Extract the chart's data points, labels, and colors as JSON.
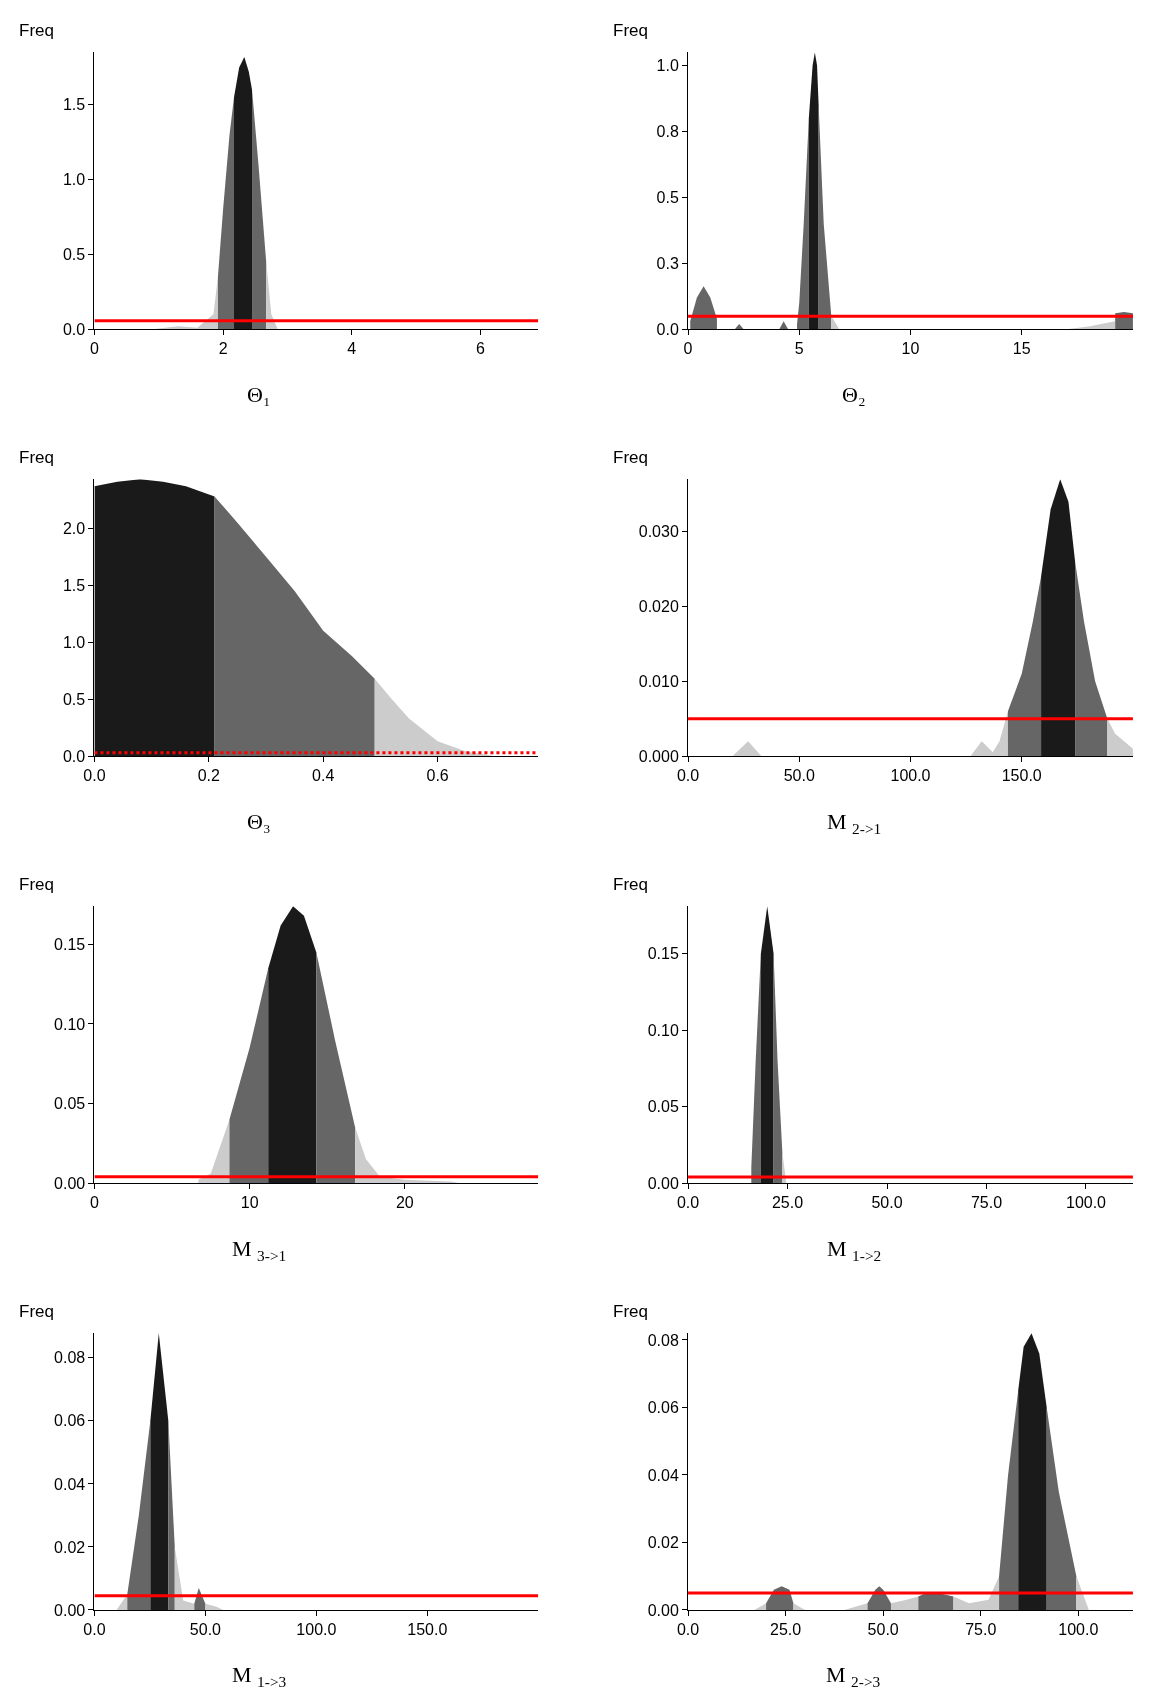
{
  "chart_data": [
    {
      "type": "area",
      "ylabel": "Freq",
      "xlabel": "Θ₁",
      "xlim": [
        0,
        6.9
      ],
      "ylim": [
        0,
        1.85
      ],
      "xticks": [
        0,
        2,
        4,
        6
      ],
      "yticks": [
        {
          "value": 0,
          "label": "0.0"
        },
        0.5,
        {
          "value": 1,
          "label": "1.0"
        },
        1.5
      ],
      "ref_lines": [
        {
          "axis": "y",
          "value": 0.056,
          "color": "#ff0000",
          "line_style": "solid"
        }
      ],
      "series": [
        {
          "color": "#cccccc",
          "x": [
            0.9,
            1.3,
            1.6,
            1.85,
            1.92
          ],
          "values": [
            0,
            0.02,
            0.01,
            0.1,
            0.35
          ]
        },
        {
          "color": "#666666",
          "x": [
            1.92,
            2.0,
            2.1,
            2.17
          ],
          "values": [
            0.35,
            0.8,
            1.3,
            1.55
          ]
        },
        {
          "color": "#1a1a1a",
          "x": [
            2.17,
            2.25,
            2.33,
            2.4,
            2.45
          ],
          "values": [
            1.55,
            1.75,
            1.82,
            1.72,
            1.6
          ]
        },
        {
          "color": "#666666",
          "x": [
            2.45,
            2.55,
            2.67
          ],
          "values": [
            1.6,
            1.1,
            0.45
          ]
        },
        {
          "color": "#cccccc",
          "x": [
            2.67,
            2.75,
            2.85
          ],
          "values": [
            0.45,
            0.1,
            0
          ]
        }
      ]
    },
    {
      "type": "area",
      "ylabel": "Freq",
      "xlabel": "Θ₂",
      "xlim": [
        0,
        20
      ],
      "ylim": [
        0,
        1.05
      ],
      "xticks": [
        0,
        5,
        10,
        15
      ],
      "yticks": [
        {
          "value": 0,
          "label": "0.0"
        },
        {
          "value": 0.25,
          "label": "0.3"
        },
        0.5,
        {
          "value": 0.75,
          "label": "0.8"
        },
        {
          "value": 1,
          "label": "1.0"
        }
      ],
      "ref_lines": [
        {
          "axis": "y",
          "value": 0.049,
          "color": "#ff0000",
          "line_style": "solid"
        }
      ],
      "series": [
        {
          "color": "#666666",
          "x": [
            0.1,
            0.4,
            0.7,
            1.0,
            1.3
          ],
          "values": [
            0.03,
            0.12,
            0.163,
            0.12,
            0.04
          ]
        },
        {
          "color": "#666666",
          "x": [
            2.1,
            2.3,
            2.5
          ],
          "values": [
            0,
            0.02,
            0
          ]
        },
        {
          "color": "#666666",
          "x": [
            4.1,
            4.3,
            4.5
          ],
          "values": [
            0,
            0.03,
            0
          ]
        },
        {
          "color": "#666666",
          "x": [
            4.9,
            5.0,
            5.2,
            5.43
          ],
          "values": [
            0.02,
            0.1,
            0.4,
            0.8
          ]
        },
        {
          "color": "#1a1a1a",
          "x": [
            5.43,
            5.6,
            5.7,
            5.8,
            5.87
          ],
          "values": [
            0.8,
            1.0,
            1.05,
            1.0,
            0.85
          ]
        },
        {
          "color": "#666666",
          "x": [
            5.87,
            6.1,
            6.44
          ],
          "values": [
            0.85,
            0.4,
            0.05
          ]
        },
        {
          "color": "#cccccc",
          "x": [
            6.44,
            6.8
          ],
          "values": [
            0.05,
            0
          ]
        },
        {
          "color": "#cccccc",
          "x": [
            17,
            18,
            19.2
          ],
          "values": [
            0,
            0.01,
            0.03
          ]
        },
        {
          "color": "#666666",
          "x": [
            19.2,
            19.6,
            20
          ],
          "values": [
            0.06,
            0.065,
            0.06
          ]
        }
      ]
    },
    {
      "type": "area",
      "ylabel": "Freq",
      "xlabel": "Θ₃",
      "xlim": [
        0,
        0.776
      ],
      "ylim": [
        0,
        2.43
      ],
      "xticks": [
        {
          "value": 0,
          "label": "0.0"
        },
        0.2,
        0.4,
        0.6
      ],
      "yticks": [
        {
          "value": 0,
          "label": "0.0"
        },
        0.5,
        {
          "value": 1,
          "label": "1.0"
        },
        1.5,
        {
          "value": 2,
          "label": "2.0"
        }
      ],
      "ref_lines": [
        {
          "axis": "y",
          "value": 0.03,
          "color": "#ff0000",
          "line_style": "dotted"
        }
      ],
      "series": [
        {
          "color": "#1a1a1a",
          "x": [
            0,
            0.04,
            0.08,
            0.12,
            0.16,
            0.21
          ],
          "values": [
            2.37,
            2.41,
            2.43,
            2.41,
            2.37,
            2.28
          ]
        },
        {
          "color": "#666666",
          "x": [
            0.21,
            0.25,
            0.3,
            0.35,
            0.4,
            0.45,
            0.49
          ],
          "values": [
            2.28,
            2.05,
            1.75,
            1.45,
            1.1,
            0.88,
            0.68
          ]
        },
        {
          "color": "#cccccc",
          "x": [
            0.49,
            0.52,
            0.55,
            0.6,
            0.65,
            0.7
          ],
          "values": [
            0.68,
            0.5,
            0.33,
            0.13,
            0.04,
            0
          ]
        }
      ]
    },
    {
      "type": "area",
      "ylabel": "Freq",
      "xlabel": "M $_{2->1}$",
      "xlim": [
        0,
        200
      ],
      "ylim": [
        0,
        0.037
      ],
      "xticks": [
        {
          "value": 0,
          "label": "0.0"
        },
        {
          "value": 50,
          "label": "50.0"
        },
        {
          "value": 100,
          "label": "100.0"
        },
        {
          "value": 150,
          "label": "150.0"
        }
      ],
      "yticks": [
        {
          "value": 0,
          "label": "0.000"
        },
        {
          "value": 0.01,
          "label": "0.010"
        },
        {
          "value": 0.02,
          "label": "0.020"
        },
        {
          "value": 0.03,
          "label": "0.030"
        }
      ],
      "ref_lines": [
        {
          "axis": "y",
          "value": 0.005,
          "color": "#ff0000",
          "line_style": "solid"
        }
      ],
      "series": [
        {
          "color": "#cccccc",
          "x": [
            20,
            27,
            33
          ],
          "values": [
            0,
            0.002,
            0
          ]
        },
        {
          "color": "#cccccc",
          "x": [
            127,
            132,
            137,
            140,
            143.8
          ],
          "values": [
            0,
            0.002,
            0.0005,
            0.002,
            0.006
          ]
        },
        {
          "color": "#666666",
          "x": [
            143.8,
            150,
            155,
            158.7
          ],
          "values": [
            0.006,
            0.011,
            0.018,
            0.024
          ]
        },
        {
          "color": "#1a1a1a",
          "x": [
            158.7,
            163,
            167.3,
            171,
            174
          ],
          "values": [
            0.024,
            0.033,
            0.037,
            0.034,
            0.026
          ]
        },
        {
          "color": "#666666",
          "x": [
            174,
            178,
            183,
            188.5
          ],
          "values": [
            0.026,
            0.018,
            0.01,
            0.005
          ]
        },
        {
          "color": "#cccccc",
          "x": [
            188.5,
            192,
            196,
            200
          ],
          "values": [
            0.005,
            0.003,
            0.002,
            0.001
          ]
        }
      ]
    },
    {
      "type": "area",
      "ylabel": "Freq",
      "xlabel": "M $_{3->1}$",
      "xlim": [
        0,
        28.6
      ],
      "ylim": [
        0,
        0.174
      ],
      "xticks": [
        0,
        10,
        20
      ],
      "yticks": [
        {
          "value": 0,
          "label": "0.00"
        },
        0.05,
        {
          "value": 0.1,
          "label": "0.10"
        },
        0.15
      ],
      "ref_lines": [
        {
          "axis": "y",
          "value": 0.004,
          "color": "#ff0000",
          "line_style": "solid"
        }
      ],
      "series": [
        {
          "color": "#cccccc",
          "x": [
            6.7,
            7.5,
            8.7
          ],
          "values": [
            0.002,
            0.006,
            0.04
          ]
        },
        {
          "color": "#666666",
          "x": [
            8.7,
            10,
            11.2
          ],
          "values": [
            0.04,
            0.085,
            0.135
          ]
        },
        {
          "color": "#1a1a1a",
          "x": [
            11.2,
            12,
            12.8,
            13.5,
            14.3
          ],
          "values": [
            0.135,
            0.162,
            0.174,
            0.168,
            0.145
          ]
        },
        {
          "color": "#666666",
          "x": [
            14.3,
            15.5,
            16.8
          ],
          "values": [
            0.145,
            0.09,
            0.035
          ]
        },
        {
          "color": "#cccccc",
          "x": [
            16.8,
            17.5,
            18.4,
            20,
            23,
            23.5
          ],
          "values": [
            0.035,
            0.015,
            0.004,
            0.002,
            0.001,
            0
          ]
        }
      ]
    },
    {
      "type": "area",
      "ylabel": "Freq",
      "xlabel": "M $_{1->2}$",
      "xlim": [
        0,
        111.8
      ],
      "ylim": [
        0,
        0.181
      ],
      "xticks": [
        {
          "value": 0,
          "label": "0.0"
        },
        {
          "value": 25,
          "label": "25.0"
        },
        {
          "value": 50,
          "label": "50.0"
        },
        {
          "value": 75,
          "label": "75.0"
        },
        {
          "value": 100,
          "label": "100.0"
        }
      ],
      "yticks": [
        {
          "value": 0,
          "label": "0.00"
        },
        0.05,
        {
          "value": 0.1,
          "label": "0.10"
        },
        0.15
      ],
      "ref_lines": [
        {
          "axis": "y",
          "value": 0.004,
          "color": "#ff0000",
          "line_style": "solid"
        }
      ],
      "series": [
        {
          "color": "#666666",
          "x": [
            15.9,
            17,
            18.3
          ],
          "values": [
            0.01,
            0.08,
            0.15
          ]
        },
        {
          "color": "#1a1a1a",
          "x": [
            18.3,
            19.9,
            21.5
          ],
          "values": [
            0.15,
            0.181,
            0.15
          ]
        },
        {
          "color": "#666666",
          "x": [
            21.5,
            22.5,
            23.7
          ],
          "values": [
            0.15,
            0.08,
            0.02
          ]
        },
        {
          "color": "#cccccc",
          "x": [
            23.7,
            24.7
          ],
          "values": [
            0.02,
            0
          ]
        }
      ]
    },
    {
      "type": "area",
      "ylabel": "Freq",
      "xlabel": "M $_{1->3}$",
      "xlim": [
        0,
        200
      ],
      "ylim": [
        0,
        0.0878
      ],
      "xticks": [
        {
          "value": 0,
          "label": "0.0"
        },
        {
          "value": 50,
          "label": "50.0"
        },
        {
          "value": 100,
          "label": "100.0"
        },
        {
          "value": 150,
          "label": "150.0"
        }
      ],
      "yticks": [
        {
          "value": 0,
          "label": "0.00"
        },
        0.02,
        0.04,
        0.06,
        0.08
      ],
      "ref_lines": [
        {
          "axis": "y",
          "value": 0.0045,
          "color": "#ff0000",
          "line_style": "solid"
        }
      ],
      "series": [
        {
          "color": "#cccccc",
          "x": [
            10,
            14.8
          ],
          "values": [
            0,
            0.005
          ]
        },
        {
          "color": "#666666",
          "x": [
            14.8,
            20,
            25.2
          ],
          "values": [
            0.005,
            0.03,
            0.06
          ]
        },
        {
          "color": "#1a1a1a",
          "x": [
            25.2,
            29,
            33.3
          ],
          "values": [
            0.06,
            0.0878,
            0.06
          ]
        },
        {
          "color": "#666666",
          "x": [
            33.3,
            34.75,
            36.2
          ],
          "values": [
            0.06,
            0.04,
            0.02
          ]
        },
        {
          "color": "#cccccc",
          "x": [
            36.2,
            40,
            45
          ],
          "values": [
            0.02,
            0.003,
            0.002
          ]
        },
        {
          "color": "#666666",
          "x": [
            45,
            47,
            50
          ],
          "values": [
            0.002,
            0.007,
            0.002
          ]
        },
        {
          "color": "#cccccc",
          "x": [
            50,
            55,
            58
          ],
          "values": [
            0.002,
            0.001,
            0
          ]
        }
      ]
    },
    {
      "type": "area",
      "ylabel": "Freq",
      "xlabel": "M $_{2->3}$",
      "xlim": [
        0,
        114
      ],
      "ylim": [
        0,
        0.082
      ],
      "xticks": [
        {
          "value": 0,
          "label": "0.0"
        },
        {
          "value": 25,
          "label": "25.0"
        },
        {
          "value": 50,
          "label": "50.0"
        },
        {
          "value": 75,
          "label": "75.0"
        },
        {
          "value": 100,
          "label": "100.0"
        }
      ],
      "yticks": [
        {
          "value": 0,
          "label": "0.00"
        },
        0.02,
        0.04,
        0.06,
        0.08
      ],
      "ref_lines": [
        {
          "axis": "y",
          "value": 0.005,
          "color": "#ff0000",
          "line_style": "solid"
        }
      ],
      "series": [
        {
          "color": "#cccccc",
          "x": [
            17,
            20
          ],
          "values": [
            0,
            0.002
          ]
        },
        {
          "color": "#666666",
          "x": [
            20,
            22,
            24,
            26,
            27
          ],
          "values": [
            0.002,
            0.006,
            0.007,
            0.006,
            0.002
          ]
        },
        {
          "color": "#cccccc",
          "x": [
            27,
            30
          ],
          "values": [
            0.002,
            0
          ]
        },
        {
          "color": "#cccccc",
          "x": [
            40,
            46
          ],
          "values": [
            0,
            0.002
          ]
        },
        {
          "color": "#666666",
          "x": [
            46,
            48,
            49,
            50,
            52
          ],
          "values": [
            0.002,
            0.006,
            0.007,
            0.006,
            0.002
          ]
        },
        {
          "color": "#cccccc",
          "x": [
            52,
            56,
            59
          ],
          "values": [
            0.002,
            0.003,
            0.004
          ]
        },
        {
          "color": "#666666",
          "x": [
            59,
            61,
            64,
            68
          ],
          "values": [
            0.004,
            0.005,
            0.005,
            0.004
          ]
        },
        {
          "color": "#cccccc",
          "x": [
            68,
            72,
            77,
            79.7
          ],
          "values": [
            0.004,
            0.002,
            0.003,
            0.01
          ]
        },
        {
          "color": "#666666",
          "x": [
            79.7,
            82,
            84.6
          ],
          "values": [
            0.01,
            0.04,
            0.065
          ]
        },
        {
          "color": "#1a1a1a",
          "x": [
            84.6,
            86,
            88,
            90,
            91.9
          ],
          "values": [
            0.065,
            0.078,
            0.082,
            0.076,
            0.06
          ]
        },
        {
          "color": "#666666",
          "x": [
            91.9,
            95,
            99.5
          ],
          "values": [
            0.06,
            0.035,
            0.01
          ]
        },
        {
          "color": "#cccccc",
          "x": [
            99.5,
            102.7
          ],
          "values": [
            0.01,
            0
          ]
        }
      ]
    }
  ]
}
